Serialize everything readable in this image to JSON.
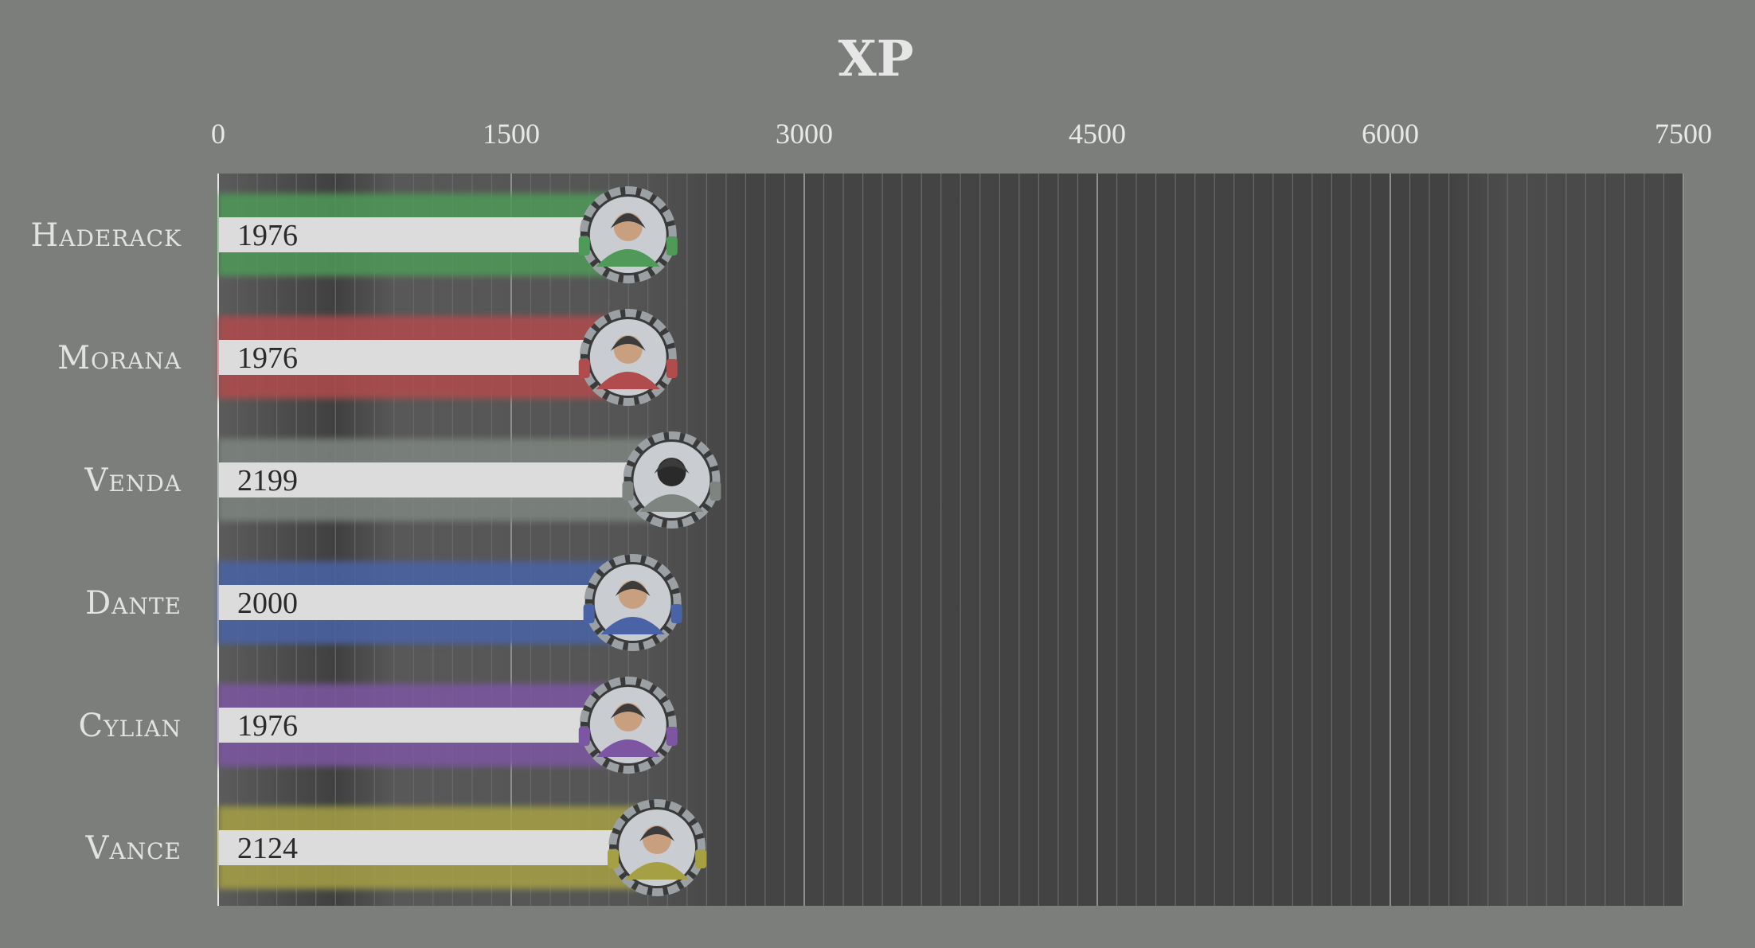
{
  "chart_data": {
    "type": "bar",
    "orientation": "horizontal",
    "title": "XP",
    "xlim": [
      0,
      7500
    ],
    "xticks": [
      0,
      1500,
      3000,
      4500,
      6000,
      7500
    ],
    "grid": true,
    "legend": "none",
    "categories": [
      "Haderack",
      "Morana",
      "Venda",
      "Dante",
      "Cylian",
      "Vance"
    ],
    "values": [
      1976,
      1976,
      2199,
      2000,
      1976,
      2124
    ],
    "value_labels": [
      "1976",
      "1976",
      "2199",
      "2000",
      "1976",
      "2124"
    ],
    "colors": [
      "#4f9a59",
      "#b04c4e",
      "#7e8580",
      "#4a63a6",
      "#7d56a3",
      "#a6a044"
    ],
    "icons": [
      "hooded-goblin-portrait-icon",
      "hatted-woman-portrait-icon",
      "black-hooded-figure-portrait-icon",
      "young-man-portrait-icon",
      "elf-portrait-icon",
      "smiling-man-portrait-icon"
    ]
  }
}
